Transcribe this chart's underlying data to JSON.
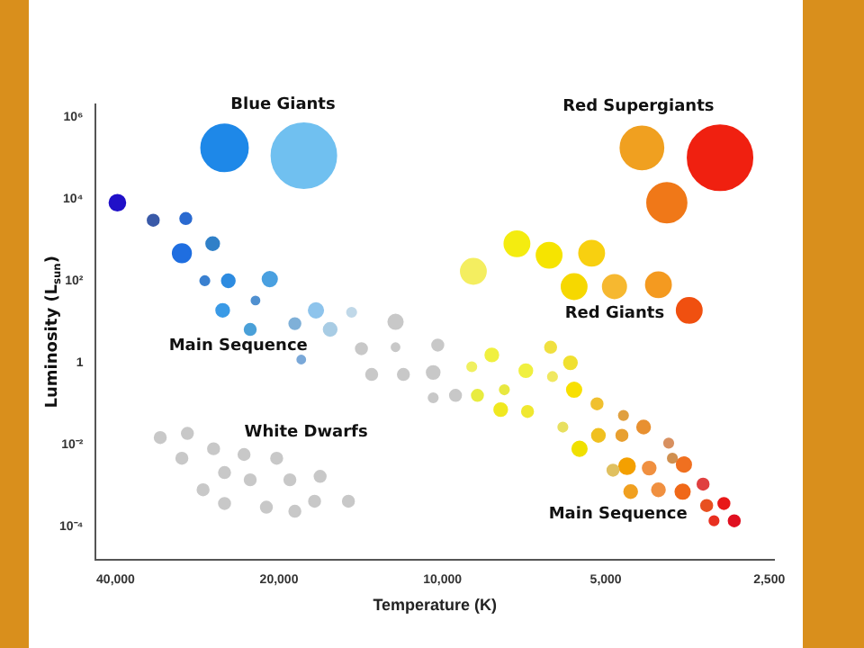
{
  "chart_data": {
    "type": "bubble",
    "xlabel": "Temperature (K)",
    "ylabel": "Luminosity (L$_{sun}$)",
    "log": "xy",
    "xlim": [
      43500,
      2450
    ],
    "ylim": [
      1.6e-05,
      2000000
    ],
    "xticks": [
      {
        "value": 40000,
        "label": "40,000"
      },
      {
        "value": 20000,
        "label": "20,000"
      },
      {
        "value": 10000,
        "label": "10,000"
      },
      {
        "value": 5000,
        "label": "5,000"
      },
      {
        "value": 2500,
        "label": "2,500"
      }
    ],
    "yticks": [
      {
        "value": 1000000,
        "label": "10⁶"
      },
      {
        "value": 10000,
        "label": "10⁴"
      },
      {
        "value": 100,
        "label": "10²"
      },
      1,
      {
        "value": 0.01,
        "label": "10⁻²"
      },
      {
        "value": 0.0001,
        "label": "10⁻⁴"
      }
    ],
    "grid": false,
    "legend": false,
    "annotations": [
      "Blue Giants",
      "Red Supergiants",
      "Main Sequence",
      "Red Giants",
      "White Dwarfs",
      "Main Sequence"
    ],
    "series": [
      {
        "x": [
          39700,
          34100,
          29700,
          30200,
          26500,
          27400,
          24800,
          20800,
          25400,
          22100,
          22600,
          18700,
          17100,
          16100,
          14700,
          18200,
          25200,
          18000
        ],
        "values": [
          8000,
          3000,
          3300,
          470,
          800,
          100,
          100,
          110,
          19,
          33,
          6.5,
          9,
          19,
          6.5,
          17,
          1.2,
          174000,
          112000
        ],
        "sizes": [
          0.06,
          0.03,
          0.03,
          0.08,
          0.04,
          0.02,
          0.04,
          0.05,
          0.04,
          0.015,
          0.03,
          0.03,
          0.05,
          0.04,
          0.02,
          0.015,
          0.52,
          1
        ],
        "colors": [
          "#2010c8",
          "#3a5aa8",
          "#2a6ad0",
          "#1f6ee0",
          "#3080c8",
          "#3a80d0",
          "#2d8be0",
          "#4aa0e0",
          "#3a9ae6",
          "#5090d0",
          "#4aa0d8",
          "#7fb0d8",
          "#8ec4ec",
          "#a8cce4",
          "#c0d8e8",
          "#7aa8d8",
          "#1e88e8",
          "#70c0f0"
        ]
      },
      {
        "x": [
          4290,
          3080,
          3860,
          8770,
          7290,
          6360,
          5310,
          5720,
          4820,
          4000,
          3510,
          8830,
          8110,
          7020,
          6320,
          5810,
          6270,
          8620,
          7690,
          7810,
          6970,
          5720,
          6000,
          5190,
          5590,
          5160,
          4640,
          4260,
          4670,
          3830,
          3770,
          3590,
          4570,
          4850,
          4160,
          4500,
          4000,
          3610,
          3310,
          3260,
          3030,
          3160,
          2900
        ],
        "values": [
          174000,
          100000,
          8000,
          170,
          800,
          420,
          470,
          72,
          72,
          80,
          19,
          0.8,
          1.55,
          0.64,
          2.4,
          1,
          0.46,
          0.16,
          0.22,
          0.072,
          0.065,
          0.22,
          0.027,
          0.1,
          0.008,
          0.017,
          0.052,
          0.027,
          0.017,
          0.011,
          0.0047,
          0.0033,
          0.003,
          0.0024,
          0.0027,
          0.00072,
          0.0008,
          0.00072,
          0.0011,
          0.00033,
          0.00037,
          0.00014,
          0.00014
        ],
        "sizes": [
          0.44,
          1,
          0.37,
          0.15,
          0.15,
          0.15,
          0.15,
          0.15,
          0.13,
          0.15,
          0.15,
          0.02,
          0.04,
          0.04,
          0.03,
          0.04,
          0.02,
          0.03,
          0.02,
          0.04,
          0.03,
          0.05,
          0.02,
          0.03,
          0.05,
          0.04,
          0.02,
          0.04,
          0.03,
          0.02,
          0.02,
          0.05,
          0.06,
          0.03,
          0.04,
          0.04,
          0.04,
          0.05,
          0.03,
          0.03,
          0.03,
          0.02,
          0.03
        ],
        "colors": [
          "#f0a020",
          "#f02010",
          "#f07818",
          "#f4ee60",
          "#f4ec10",
          "#f6e400",
          "#f8d010",
          "#f6d800",
          "#f6b830",
          "#f49a20",
          "#f05010",
          "#f0f060",
          "#f0f040",
          "#f0f040",
          "#f0e040",
          "#f0e030",
          "#f0e860",
          "#e8ec40",
          "#e8e840",
          "#f0e820",
          "#f0e830",
          "#f8e000",
          "#e8e060",
          "#f0c030",
          "#f0e000",
          "#f0c020",
          "#e0a040",
          "#e89030",
          "#e8a030",
          "#d89060",
          "#d09050",
          "#f07020",
          "#f4a000",
          "#e0c060",
          "#f09040",
          "#f0a020",
          "#f09040",
          "#f06818",
          "#e04040",
          "#e85020",
          "#e81818",
          "#e83020",
          "#e01020"
        ]
      },
      {
        "x": [
          12200,
          14100,
          12200,
          13500,
          11800,
          10400,
          10200,
          10400,
          9460,
          33100,
          29500,
          30200,
          26400,
          23200,
          25200,
          20200,
          22600,
          27600,
          19100,
          16800,
          25200,
          21100,
          18700,
          17200,
          14900
        ],
        "values": [
          10,
          2.2,
          2.4,
          0.52,
          0.52,
          0.58,
          2.7,
          0.14,
          0.16,
          0.015,
          0.019,
          0.0047,
          0.008,
          0.0058,
          0.0021,
          0.0047,
          0.0014,
          0.0008,
          0.0014,
          0.0017,
          0.00037,
          0.0003,
          0.00024,
          0.00042,
          0.00042
        ],
        "sizes": [
          0.05,
          0.03,
          0.015,
          0.03,
          0.03,
          0.04,
          0.03,
          0.02,
          0.03,
          0.03,
          0.03,
          0.03,
          0.03,
          0.03,
          0.03,
          0.03,
          0.03,
          0.03,
          0.03,
          0.03,
          0.03,
          0.03,
          0.03,
          0.03,
          0.03
        ],
        "color": "#c8c8c8"
      }
    ]
  }
}
